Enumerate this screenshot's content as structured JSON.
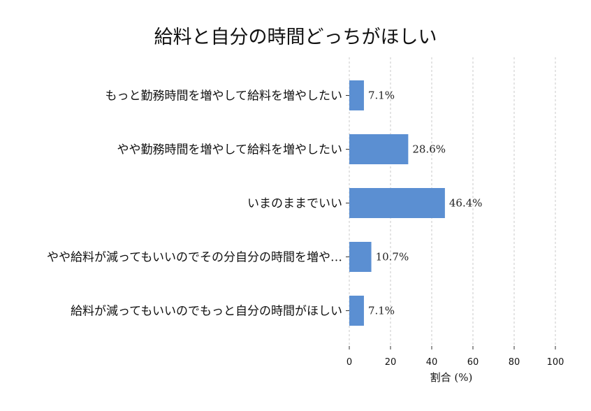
{
  "chart_data": {
    "type": "bar",
    "orientation": "horizontal",
    "title": "給料と自分の時間どっちがほしい",
    "categories": [
      "もっと勤務時間を増やして給料を増やしたい",
      "やや勤務時間を増やして給料を増やしたい",
      "いまのままでいい",
      "やや給料が減ってもいいのでその分自分の時間を増や…",
      "給料が減ってもいいのでもっと自分の時間がほしい"
    ],
    "values": [
      7.1,
      28.6,
      46.4,
      10.7,
      7.1
    ],
    "value_labels": [
      "7.1%",
      "28.6%",
      "46.4%",
      "10.7%",
      "7.1%"
    ],
    "xlabel": "割合 (%)",
    "ylabel": "",
    "xlim": [
      0,
      100
    ],
    "xticks": [
      0,
      20,
      40,
      60,
      80,
      100
    ],
    "grid": "vertical dashed",
    "bar_color": "#5b8fd2"
  }
}
